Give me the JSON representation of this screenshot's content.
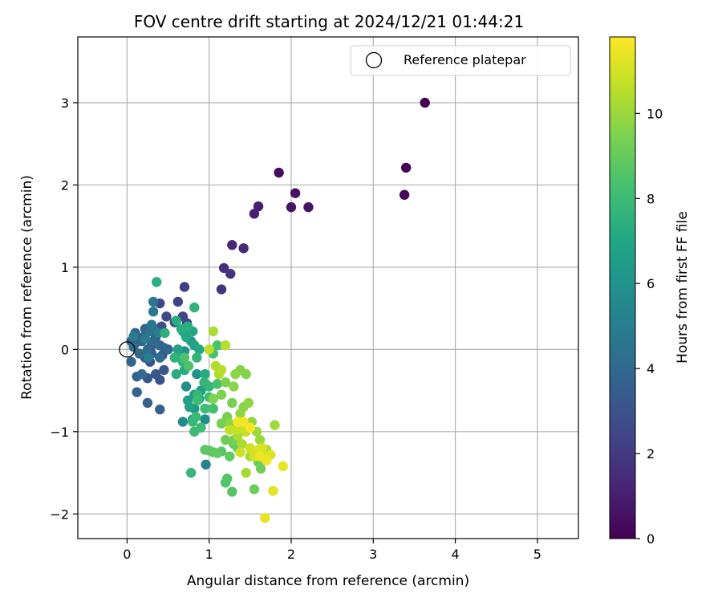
{
  "chart_data": {
    "type": "scatter",
    "title": "FOV centre drift starting at 2024/12/21 01:44:21",
    "xlabel": "Angular distance from reference (arcmin)",
    "ylabel": "Rotation from reference (arcmin)",
    "xlim": [
      -0.6,
      5.5
    ],
    "ylim": [
      -2.3,
      3.8
    ],
    "xticks": [
      0,
      1,
      2,
      3,
      4,
      5
    ],
    "yticks": [
      -2,
      -1,
      0,
      1,
      2,
      3
    ],
    "xtick_labels": [
      "0",
      "1",
      "2",
      "3",
      "4",
      "5"
    ],
    "ytick_labels": [
      "−2",
      "−1",
      "0",
      "1",
      "2",
      "3"
    ],
    "grid": true,
    "legend": {
      "position": "top-right",
      "entries": [
        "Reference platepar"
      ]
    },
    "reference_point": {
      "x": 0,
      "y": 0,
      "label": "Reference platepar"
    },
    "colorbar": {
      "label": "Hours from first FF file",
      "range": [
        0,
        11.8
      ],
      "ticks": [
        0,
        2,
        4,
        6,
        8,
        10
      ],
      "tick_labels": [
        "0",
        "2",
        "4",
        "6",
        "8",
        "10"
      ],
      "colormap": "viridis"
    },
    "series": [
      {
        "columns": [
          "x",
          "y",
          "hours"
        ],
        "points": [
          [
            3.63,
            3.0,
            0.0
          ],
          [
            3.4,
            2.21,
            0.1
          ],
          [
            3.38,
            1.88,
            0.2
          ],
          [
            1.85,
            2.15,
            0.4
          ],
          [
            2.05,
            1.9,
            0.5
          ],
          [
            2.0,
            1.73,
            0.6
          ],
          [
            2.21,
            1.73,
            0.6
          ],
          [
            1.6,
            1.74,
            1.0
          ],
          [
            1.55,
            1.65,
            1.1
          ],
          [
            1.28,
            1.27,
            1.3
          ],
          [
            1.42,
            1.23,
            1.4
          ],
          [
            1.18,
            0.99,
            1.6
          ],
          [
            1.26,
            0.92,
            1.7
          ],
          [
            1.15,
            0.73,
            1.8
          ],
          [
            0.7,
            0.76,
            2.2
          ],
          [
            0.62,
            0.58,
            2.3
          ],
          [
            0.4,
            0.56,
            2.5
          ],
          [
            0.68,
            0.4,
            2.4
          ],
          [
            0.48,
            0.4,
            2.6
          ],
          [
            0.58,
            0.33,
            2.7
          ],
          [
            0.42,
            0.28,
            2.8
          ],
          [
            0.73,
            0.32,
            2.6
          ],
          [
            0.43,
            -0.07,
            2.9
          ],
          [
            0.4,
            -0.37,
            3.0
          ],
          [
            0.28,
            -0.15,
            3.0
          ],
          [
            0.25,
            -0.35,
            3.1
          ],
          [
            0.35,
            -0.3,
            3.2
          ],
          [
            0.45,
            -0.25,
            3.2
          ],
          [
            0.22,
            -0.1,
            3.3
          ],
          [
            0.3,
            0.05,
            3.3
          ],
          [
            0.35,
            0.15,
            3.4
          ],
          [
            0.2,
            0.15,
            3.4
          ],
          [
            0.15,
            0.1,
            3.5
          ],
          [
            0.05,
            0.1,
            3.5
          ],
          [
            0.3,
            -0.05,
            3.5
          ],
          [
            0.35,
            0.2,
            3.5
          ],
          [
            0.45,
            0.02,
            3.6
          ],
          [
            0.1,
            0.2,
            3.6
          ],
          [
            0.12,
            -0.33,
            3.6
          ],
          [
            0.12,
            -0.52,
            3.7
          ],
          [
            0.25,
            -0.65,
            3.7
          ],
          [
            0.4,
            -0.73,
            3.7
          ],
          [
            0.05,
            -0.15,
            3.8
          ],
          [
            0.18,
            0.1,
            3.8
          ],
          [
            0.22,
            0.25,
            3.8
          ],
          [
            0.3,
            0.28,
            3.9
          ],
          [
            0.5,
            0.0,
            3.9
          ],
          [
            0.4,
            0.05,
            4.0
          ],
          [
            0.15,
            -0.05,
            4.0
          ],
          [
            0.25,
            0.0,
            4.1
          ],
          [
            0.32,
            0.1,
            4.1
          ],
          [
            0.4,
            -0.1,
            4.2
          ],
          [
            0.18,
            -0.3,
            4.2
          ],
          [
            0.08,
            0.03,
            4.3
          ],
          [
            0.28,
            0.22,
            4.4
          ],
          [
            0.32,
            0.58,
            4.6
          ],
          [
            0.32,
            0.46,
            4.7
          ],
          [
            0.3,
            0.3,
            4.7
          ],
          [
            0.22,
            0.13,
            4.8
          ],
          [
            0.08,
            0.16,
            4.9
          ],
          [
            0.38,
            0.2,
            5.0
          ],
          [
            0.26,
            -0.1,
            5.0
          ],
          [
            0.96,
            -1.4,
            5.2
          ],
          [
            0.68,
            -0.88,
            5.6
          ],
          [
            0.95,
            -0.85,
            5.8
          ],
          [
            0.72,
            -0.45,
            5.8
          ],
          [
            0.7,
            -0.02,
            5.9
          ],
          [
            0.85,
            -0.3,
            6.0
          ],
          [
            0.8,
            -0.85,
            6.1
          ],
          [
            0.82,
            -0.72,
            6.2
          ],
          [
            0.78,
            0.1,
            6.3
          ],
          [
            0.68,
            0.22,
            6.4
          ],
          [
            0.9,
            -0.5,
            6.5
          ],
          [
            0.82,
            -0.55,
            6.5
          ],
          [
            0.74,
            -0.62,
            6.6
          ],
          [
            0.62,
            0.0,
            6.7
          ],
          [
            0.88,
            -0.6,
            6.8
          ],
          [
            0.76,
            -0.7,
            6.8
          ],
          [
            0.82,
            0.05,
            6.9
          ],
          [
            0.72,
            0.15,
            7.0
          ],
          [
            0.8,
            0.22,
            7.0
          ],
          [
            0.88,
            0.0,
            7.1
          ],
          [
            0.65,
            -0.1,
            7.1
          ],
          [
            0.7,
            -0.25,
            7.2
          ],
          [
            0.95,
            -0.3,
            7.2
          ],
          [
            0.6,
            -0.3,
            7.3
          ],
          [
            0.6,
            0.35,
            7.3
          ],
          [
            0.66,
            0.25,
            7.4
          ],
          [
            0.74,
            0.28,
            7.4
          ],
          [
            0.36,
            0.82,
            7.4
          ],
          [
            0.82,
            0.51,
            7.5
          ],
          [
            0.46,
            0.2,
            7.5
          ],
          [
            0.58,
            -0.1,
            7.6
          ],
          [
            0.68,
            -0.15,
            7.6
          ],
          [
            0.85,
            -0.1,
            7.7
          ],
          [
            0.94,
            -0.4,
            7.7
          ],
          [
            1.0,
            -0.45,
            7.8
          ],
          [
            0.78,
            -1.5,
            7.8
          ],
          [
            0.86,
            -0.55,
            7.8
          ],
          [
            0.84,
            -0.82,
            7.9
          ],
          [
            0.8,
            -0.88,
            7.9
          ],
          [
            0.82,
            -1.0,
            8.0
          ],
          [
            0.9,
            -0.95,
            8.0
          ],
          [
            0.86,
            -0.62,
            8.1
          ],
          [
            0.95,
            -0.72,
            8.1
          ],
          [
            1.05,
            -0.72,
            8.2
          ],
          [
            1.0,
            -0.58,
            8.2
          ],
          [
            1.1,
            -0.42,
            8.3
          ],
          [
            1.05,
            -0.05,
            8.3
          ],
          [
            1.1,
            0.05,
            8.4
          ],
          [
            0.7,
            -0.1,
            8.4
          ],
          [
            0.75,
            -0.2,
            8.5
          ],
          [
            1.2,
            -1.62,
            8.5
          ],
          [
            1.28,
            -1.73,
            8.6
          ],
          [
            1.22,
            -1.57,
            8.6
          ],
          [
            1.05,
            -1.25,
            8.7
          ],
          [
            1.15,
            -1.24,
            8.7
          ],
          [
            1.0,
            -1.23,
            8.8
          ],
          [
            0.95,
            -1.22,
            8.8
          ],
          [
            1.1,
            -1.26,
            8.9
          ],
          [
            1.25,
            -1.3,
            8.9
          ],
          [
            1.3,
            -1.15,
            9.0
          ],
          [
            1.35,
            -1.2,
            9.0
          ],
          [
            1.6,
            -1.37,
            9.1
          ],
          [
            1.55,
            -1.7,
            9.1
          ],
          [
            1.63,
            -1.45,
            9.2
          ],
          [
            1.2,
            -1.1,
            9.2
          ],
          [
            1.3,
            -1.1,
            9.3
          ],
          [
            1.15,
            -0.9,
            9.3
          ],
          [
            1.22,
            -0.82,
            9.4
          ],
          [
            1.28,
            -0.65,
            9.4
          ],
          [
            1.15,
            -0.55,
            9.5
          ],
          [
            1.2,
            -0.4,
            9.5
          ],
          [
            1.05,
            -0.6,
            9.5
          ],
          [
            1.45,
            -0.3,
            9.6
          ],
          [
            1.38,
            -0.25,
            9.6
          ],
          [
            1.32,
            -0.3,
            9.7
          ],
          [
            1.3,
            -0.45,
            9.7
          ],
          [
            1.42,
            -0.7,
            9.7
          ],
          [
            1.48,
            -0.65,
            9.8
          ],
          [
            1.38,
            -0.78,
            9.8
          ],
          [
            1.25,
            -0.9,
            9.8
          ],
          [
            1.45,
            -0.95,
            9.9
          ],
          [
            1.52,
            -0.88,
            9.9
          ],
          [
            1.58,
            -1.0,
            10.0
          ],
          [
            1.62,
            -1.1,
            10.0
          ],
          [
            1.8,
            -0.92,
            10.1
          ],
          [
            1.7,
            -1.22,
            10.1
          ],
          [
            1.5,
            -1.3,
            10.2
          ],
          [
            1.45,
            -1.5,
            10.2
          ],
          [
            1.4,
            -1.15,
            10.3
          ],
          [
            1.35,
            -1.05,
            10.3
          ],
          [
            1.12,
            -0.3,
            10.4
          ],
          [
            1.08,
            -0.2,
            10.4
          ],
          [
            1.15,
            -0.25,
            10.5
          ],
          [
            1.2,
            0.05,
            10.5
          ],
          [
            1.0,
            0.0,
            10.6
          ],
          [
            1.05,
            0.22,
            10.3
          ],
          [
            1.25,
            -0.98,
            10.7
          ],
          [
            1.32,
            -0.98,
            10.7
          ],
          [
            1.38,
            -0.95,
            10.8
          ],
          [
            1.45,
            -1.0,
            10.8
          ],
          [
            1.38,
            -1.25,
            10.9
          ],
          [
            1.5,
            -1.2,
            10.9
          ],
          [
            1.55,
            -1.3,
            11.0
          ],
          [
            1.6,
            -1.28,
            11.0
          ],
          [
            1.65,
            -1.2,
            11.1
          ],
          [
            1.7,
            -1.3,
            11.1
          ],
          [
            1.75,
            -1.28,
            11.2
          ],
          [
            1.6,
            -1.22,
            11.2
          ],
          [
            1.78,
            -1.72,
            11.3
          ],
          [
            1.68,
            -2.05,
            11.4
          ],
          [
            1.9,
            -1.42,
            11.4
          ],
          [
            1.7,
            -1.35,
            11.5
          ],
          [
            1.62,
            -1.3,
            11.5
          ],
          [
            1.35,
            -0.88,
            11.6
          ],
          [
            1.42,
            -0.88,
            11.6
          ],
          [
            1.5,
            -0.95,
            11.7
          ]
        ]
      }
    ]
  }
}
